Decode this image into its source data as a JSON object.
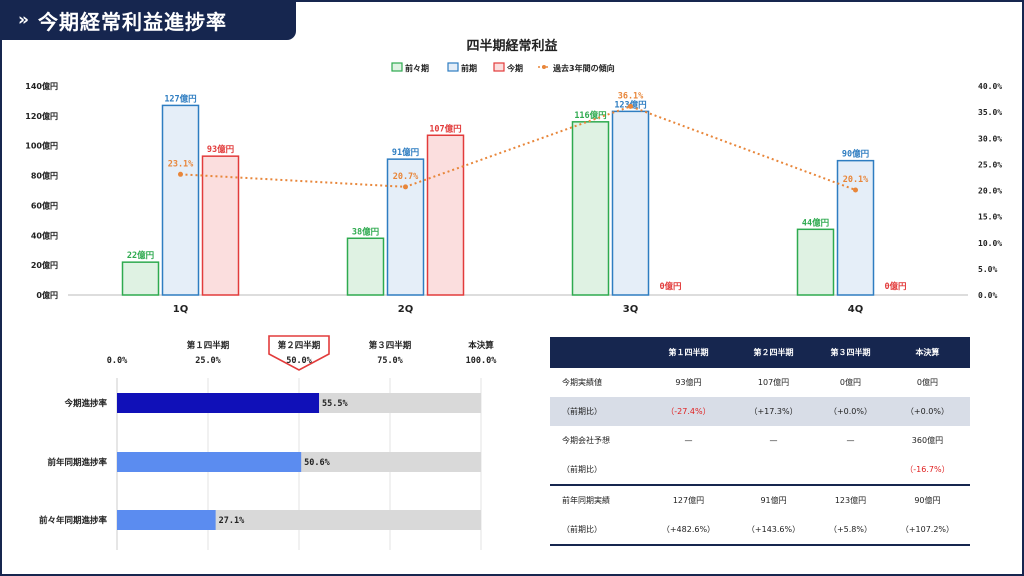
{
  "banner": {
    "chevron": "»",
    "title": "今期経常利益進捗率"
  },
  "chart_data": [
    {
      "type": "bar",
      "title": "四半期経常利益",
      "categories": [
        "1Q",
        "2Q",
        "3Q",
        "4Q"
      ],
      "y_ticks": [
        "0億円",
        "20億円",
        "40億円",
        "60億円",
        "80億円",
        "100億円",
        "120億円",
        "140億円"
      ],
      "y_right_ticks": [
        "0.0%",
        "5.0%",
        "10.0%",
        "15.0%",
        "20.0%",
        "25.0%",
        "30.0%",
        "35.0%",
        "40.0%"
      ],
      "ylim": [
        0,
        140
      ],
      "y2lim": [
        0,
        40
      ],
      "legend_position": "top-center",
      "series": [
        {
          "name": "前々期",
          "values": [
            22,
            38,
            116,
            44
          ],
          "labels": [
            "22億円",
            "38億円",
            "116億円",
            "44億円"
          ],
          "color": "#2eaa4f",
          "fill": "#dff2e3"
        },
        {
          "name": "前期",
          "values": [
            127,
            91,
            123,
            90
          ],
          "labels": [
            "127億円",
            "91億円",
            "123億円",
            "90億円"
          ],
          "color": "#2e7dc1",
          "fill": "#e5eef8"
        },
        {
          "name": "今期",
          "values": [
            93,
            107,
            0,
            0
          ],
          "labels": [
            "93億円",
            "107億円",
            "0億円",
            "0億円"
          ],
          "color": "#e23b3b",
          "fill": "#fbdede"
        }
      ],
      "line": {
        "name": "過去3年間の傾向",
        "values": [
          23.1,
          20.7,
          36.1,
          20.1
        ],
        "labels": [
          "23.1%",
          "20.7%",
          "36.1%",
          "20.1%"
        ],
        "color": "#e8863a"
      }
    },
    {
      "type": "bar",
      "orientation": "horizontal",
      "categories": [
        "今期進捗率",
        "前年同期進捗率",
        "前々年同期進捗率"
      ],
      "values": [
        55.5,
        50.6,
        27.1
      ],
      "labels": [
        "55.5%",
        "50.6%",
        "27.1%"
      ],
      "colors": [
        "#1010b8",
        "#5b8cf0",
        "#5b8cf0"
      ],
      "xlim": [
        0,
        100
      ],
      "milestones": [
        {
          "label": "第１四半期",
          "tick": "25.0%",
          "value": 25,
          "highlight": false
        },
        {
          "label": "第２四半期",
          "tick": "50.0%",
          "value": 50,
          "highlight": true
        },
        {
          "label": "第３四半期",
          "tick": "75.0%",
          "value": 75,
          "highlight": false
        },
        {
          "label": "本決算",
          "tick": "100.0%",
          "value": 100,
          "highlight": false
        }
      ],
      "start_tick": "0.0%"
    }
  ],
  "table": {
    "headers": [
      "",
      "第１四半期",
      "第２四半期",
      "第３四半期",
      "本決算"
    ],
    "rows": [
      {
        "cells": [
          "今期実績値",
          "93億円",
          "107億円",
          "0億円",
          "0億円"
        ],
        "shade": false,
        "sep": false,
        "neg": []
      },
      {
        "cells": [
          "（前期比）",
          "（-27.4%）",
          "（+17.3%）",
          "（+0.0%）",
          "（+0.0%）"
        ],
        "shade": true,
        "sep": false,
        "neg": [
          1
        ]
      },
      {
        "cells": [
          "今期会社予想",
          "—",
          "—",
          "—",
          "360億円"
        ],
        "shade": false,
        "sep": false,
        "neg": []
      },
      {
        "cells": [
          "（前期比）",
          "",
          "",
          "",
          "（-16.7%）"
        ],
        "shade": false,
        "sep": false,
        "neg": [
          4
        ]
      },
      {
        "cells": [
          "前年同期実績",
          "127億円",
          "91億円",
          "123億円",
          "90億円"
        ],
        "shade": false,
        "sep": true,
        "neg": []
      },
      {
        "cells": [
          "（前期比）",
          "（+482.6%）",
          "（+143.6%）",
          "（+5.8%）",
          "（+107.2%）"
        ],
        "shade": false,
        "sep": false,
        "neg": []
      }
    ]
  }
}
